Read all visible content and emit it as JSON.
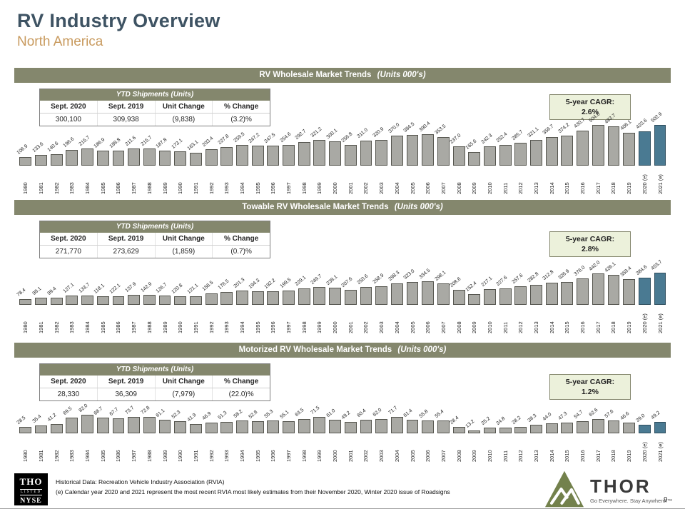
{
  "slide": {
    "title": "RV Industry Overview",
    "subtitle": "North America",
    "page_number": "9"
  },
  "colors": {
    "title": "#3E5363",
    "subtitle": "#C89A5E",
    "header_olive": "#84876D",
    "bar_fill": "#A9A9A4",
    "bar_estimate": "#4A7A92",
    "cagr_bg": "#ECF1DB"
  },
  "table_header": "YTD Shipments (Units)",
  "table_columns": [
    "Sept. 2020",
    "Sept. 2019",
    "Unit Change",
    "% Change"
  ],
  "sections": [
    {
      "title": "RV Wholesale Market Trends",
      "title_suffix": "(Units 000's)",
      "table_values": [
        "300,100",
        "309,938",
        "(9,838)",
        "(3.2)%"
      ],
      "cagr_label": "5-year CAGR:",
      "cagr_value": "2.6%"
    },
    {
      "title": "Towable RV Wholesale Market Trends",
      "title_suffix": "(Units 000's)",
      "table_values": [
        "271,770",
        "273,629",
        "(1,859)",
        "(0.7)%"
      ],
      "cagr_label": "5-year CAGR:",
      "cagr_value": "2.8%"
    },
    {
      "title": "Motorized RV Wholesale Market Trends",
      "title_suffix": "(Units 000's)",
      "table_values": [
        "28,330",
        "36,309",
        "(7,979)",
        "(22.0)%"
      ],
      "cagr_label": "5-year CAGR:",
      "cagr_value": "1.2%"
    }
  ],
  "chart_data": [
    {
      "type": "bar",
      "title": "RV Wholesale Market Trends (Units 000's)",
      "ylabel": "Units (000's)",
      "ylim": [
        0,
        550
      ],
      "estimate_count": 2,
      "categories": [
        "1980",
        "1981",
        "1982",
        "1983",
        "1984",
        "1985",
        "1986",
        "1987",
        "1988",
        "1989",
        "1990",
        "1991",
        "1992",
        "1993",
        "1994",
        "1995",
        "1996",
        "1997",
        "1998",
        "1999",
        "2000",
        "2001",
        "2002",
        "2003",
        "2004",
        "2005",
        "2006",
        "2007",
        "2008",
        "2009",
        "2010",
        "2011",
        "2012",
        "2013",
        "2014",
        "2015",
        "2016",
        "2017",
        "2018",
        "2019",
        "2020 (e)",
        "2021 (e)"
      ],
      "values": [
        106.9,
        133.6,
        140.6,
        196.6,
        215.7,
        186.9,
        189.8,
        211.6,
        215.7,
        187.8,
        173.1,
        163.1,
        203.4,
        227.8,
        259.5,
        247.2,
        247.5,
        254.6,
        292.7,
        321.2,
        300.1,
        256.8,
        311.0,
        320.9,
        370.0,
        384.5,
        390.4,
        353.5,
        237.0,
        165.6,
        242.3,
        252.4,
        285.7,
        321.1,
        356.7,
        374.2,
        430.7,
        504.6,
        483.7,
        406.1,
        423.6,
        502.9
      ]
    },
    {
      "type": "bar",
      "title": "Towable RV Wholesale Market Trends (Units 000's)",
      "ylabel": "Units (000's)",
      "ylim": [
        0,
        500
      ],
      "estimate_count": 2,
      "categories": [
        "1980",
        "1981",
        "1982",
        "1983",
        "1984",
        "1985",
        "1986",
        "1987",
        "1988",
        "1989",
        "1990",
        "1991",
        "1992",
        "1993",
        "1994",
        "1995",
        "1996",
        "1997",
        "1998",
        "1999",
        "2000",
        "2001",
        "2002",
        "2003",
        "2004",
        "2005",
        "2006",
        "2007",
        "2008",
        "2009",
        "2010",
        "2011",
        "2012",
        "2013",
        "2014",
        "2015",
        "2016",
        "2017",
        "2018",
        "2019",
        "2020 (e)",
        "2021 (e)"
      ],
      "values": [
        78.4,
        98.1,
        99.4,
        127.1,
        133.7,
        118.1,
        122.1,
        137.9,
        142.9,
        126.7,
        120.8,
        121.1,
        156.5,
        176.5,
        201.3,
        194.3,
        192.2,
        199.5,
        229.1,
        249.7,
        239.1,
        207.6,
        250.6,
        258.9,
        298.3,
        323.0,
        334.5,
        298.1,
        208.6,
        152.4,
        217.1,
        227.6,
        257.6,
        282.8,
        312.8,
        326.9,
        376.0,
        442.0,
        426.1,
        359.4,
        384.6,
        453.7
      ]
    },
    {
      "type": "bar",
      "title": "Motorized RV Wholesale Market Trends (Units 000's)",
      "ylabel": "Units (000's)",
      "ylim": [
        0,
        90
      ],
      "estimate_count": 2,
      "categories": [
        "1980",
        "1981",
        "1982",
        "1983",
        "1984",
        "1985",
        "1986",
        "1987",
        "1988",
        "1989",
        "1990",
        "1991",
        "1992",
        "1993",
        "1994",
        "1995",
        "1996",
        "1997",
        "1998",
        "1999",
        "2000",
        "2001",
        "2002",
        "2003",
        "2004",
        "2005",
        "2006",
        "2007",
        "2008",
        "2009",
        "2010",
        "2011",
        "2012",
        "2013",
        "2014",
        "2015",
        "2016",
        "2017",
        "2018",
        "2019",
        "2020 (e)",
        "2021 (e)"
      ],
      "values": [
        28.5,
        35.4,
        41.2,
        69.5,
        82.0,
        68.7,
        67.7,
        73.7,
        72.8,
        61.1,
        52.3,
        41.9,
        46.9,
        51.3,
        58.2,
        52.8,
        55.3,
        55.1,
        63.5,
        71.5,
        61.0,
        49.2,
        60.4,
        62.0,
        71.7,
        61.4,
        55.8,
        55.4,
        28.4,
        13.2,
        25.2,
        24.8,
        28.2,
        38.3,
        44.0,
        47.3,
        54.7,
        62.6,
        57.6,
        46.6,
        39.0,
        49.2
      ]
    }
  ],
  "footer": {
    "nyse_ticker": "THO",
    "nyse_listed": "LISTED",
    "nyse_exchange": "NYSE",
    "note1": "Historical Data: Recreation Vehicle Industry Association (RVIA)",
    "note2": "(e) Calendar year 2020 and 2021 represent the most recent RVIA most likely estimates from their November 2020, Winter 2020 issue of Roadsigns",
    "thor_wordmark": "THOR",
    "thor_tagline": "Go Everywhere. Stay Anywhere.™"
  }
}
